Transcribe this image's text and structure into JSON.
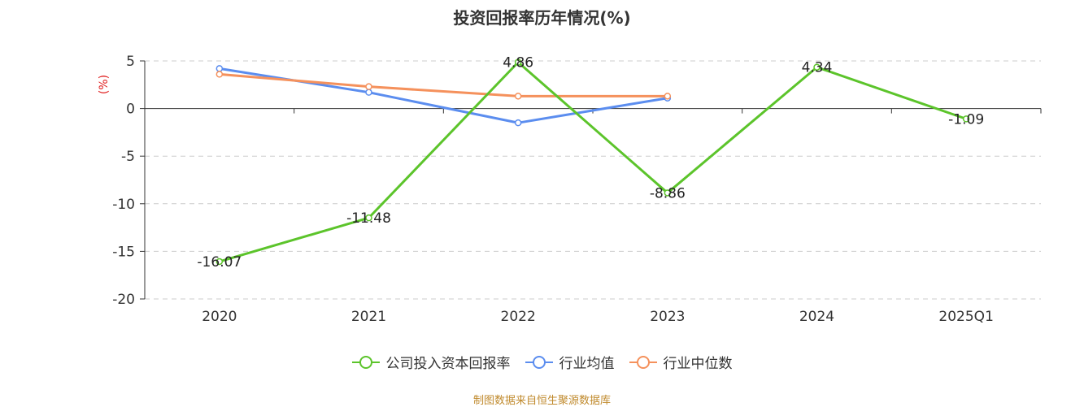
{
  "chart_data": {
    "type": "line",
    "title": "投资回报率历年情况(%)",
    "ylabel": "(%)",
    "categories": [
      "2020",
      "2021",
      "2022",
      "2023",
      "2024",
      "2025Q1"
    ],
    "ylim": [
      -20,
      5
    ],
    "yticks": [
      5,
      0,
      -5,
      -10,
      -15,
      -20
    ],
    "grid": true,
    "legend_position": "bottom",
    "series": [
      {
        "name": "公司投入资本回报率",
        "color": "#5cc42b",
        "values": [
          -16.07,
          -11.48,
          4.86,
          -8.86,
          4.34,
          -1.09
        ],
        "labels": [
          "-16.07",
          "-11.48",
          "4.86",
          "-8.86",
          "4.34",
          "-1.09"
        ]
      },
      {
        "name": "行业均值",
        "color": "#5b8def",
        "values": [
          4.2,
          1.7,
          -1.5,
          1.1,
          null,
          null
        ]
      },
      {
        "name": "行业中位数",
        "color": "#f5915c",
        "values": [
          3.6,
          2.3,
          1.3,
          1.3,
          null,
          null
        ]
      }
    ]
  },
  "source_note": "制图数据来自恒生聚源数据库"
}
